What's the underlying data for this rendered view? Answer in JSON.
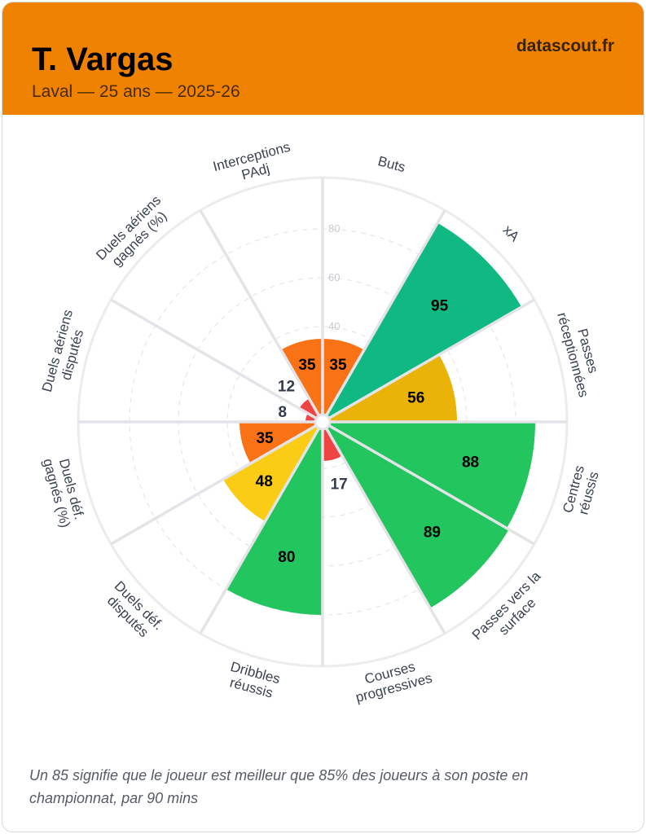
{
  "header": {
    "player": "T. Vargas",
    "subtitle": "Laval — 25 ans — 2025-26",
    "brand": "datascout.fr",
    "color": "#ef8200"
  },
  "chart_data": {
    "type": "pie",
    "subtype": "polar-area (pizza) percentile chart",
    "range": [
      0,
      100
    ],
    "grid": true,
    "ticks": [
      40,
      60,
      80
    ],
    "categories": [
      "Buts",
      "xA",
      "Passes réceptionnées",
      "Centres réussis",
      "Passes vers la surface",
      "Courses progressives",
      "Dribbles réussis",
      "Duels déf. disputés",
      "Duels déf. gagnés (%)",
      "Duels aériens disputés",
      "Duels aériens gagnés (%)",
      "Interceptions PAdj"
    ],
    "values": [
      35,
      95,
      56,
      88,
      89,
      17,
      80,
      48,
      35,
      8,
      12,
      35
    ],
    "colors": [
      "#f97316",
      "#10b981",
      "#eab308",
      "#22c55e",
      "#22c55e",
      "#ef4444",
      "#22c55e",
      "#facc15",
      "#f97316",
      "#ef4444",
      "#ef4444",
      "#f97316"
    ]
  },
  "footer": {
    "note": "Un 85 signifie que le joueur est meilleur que 85% des joueurs à son poste en championnat, par 90 mins"
  }
}
